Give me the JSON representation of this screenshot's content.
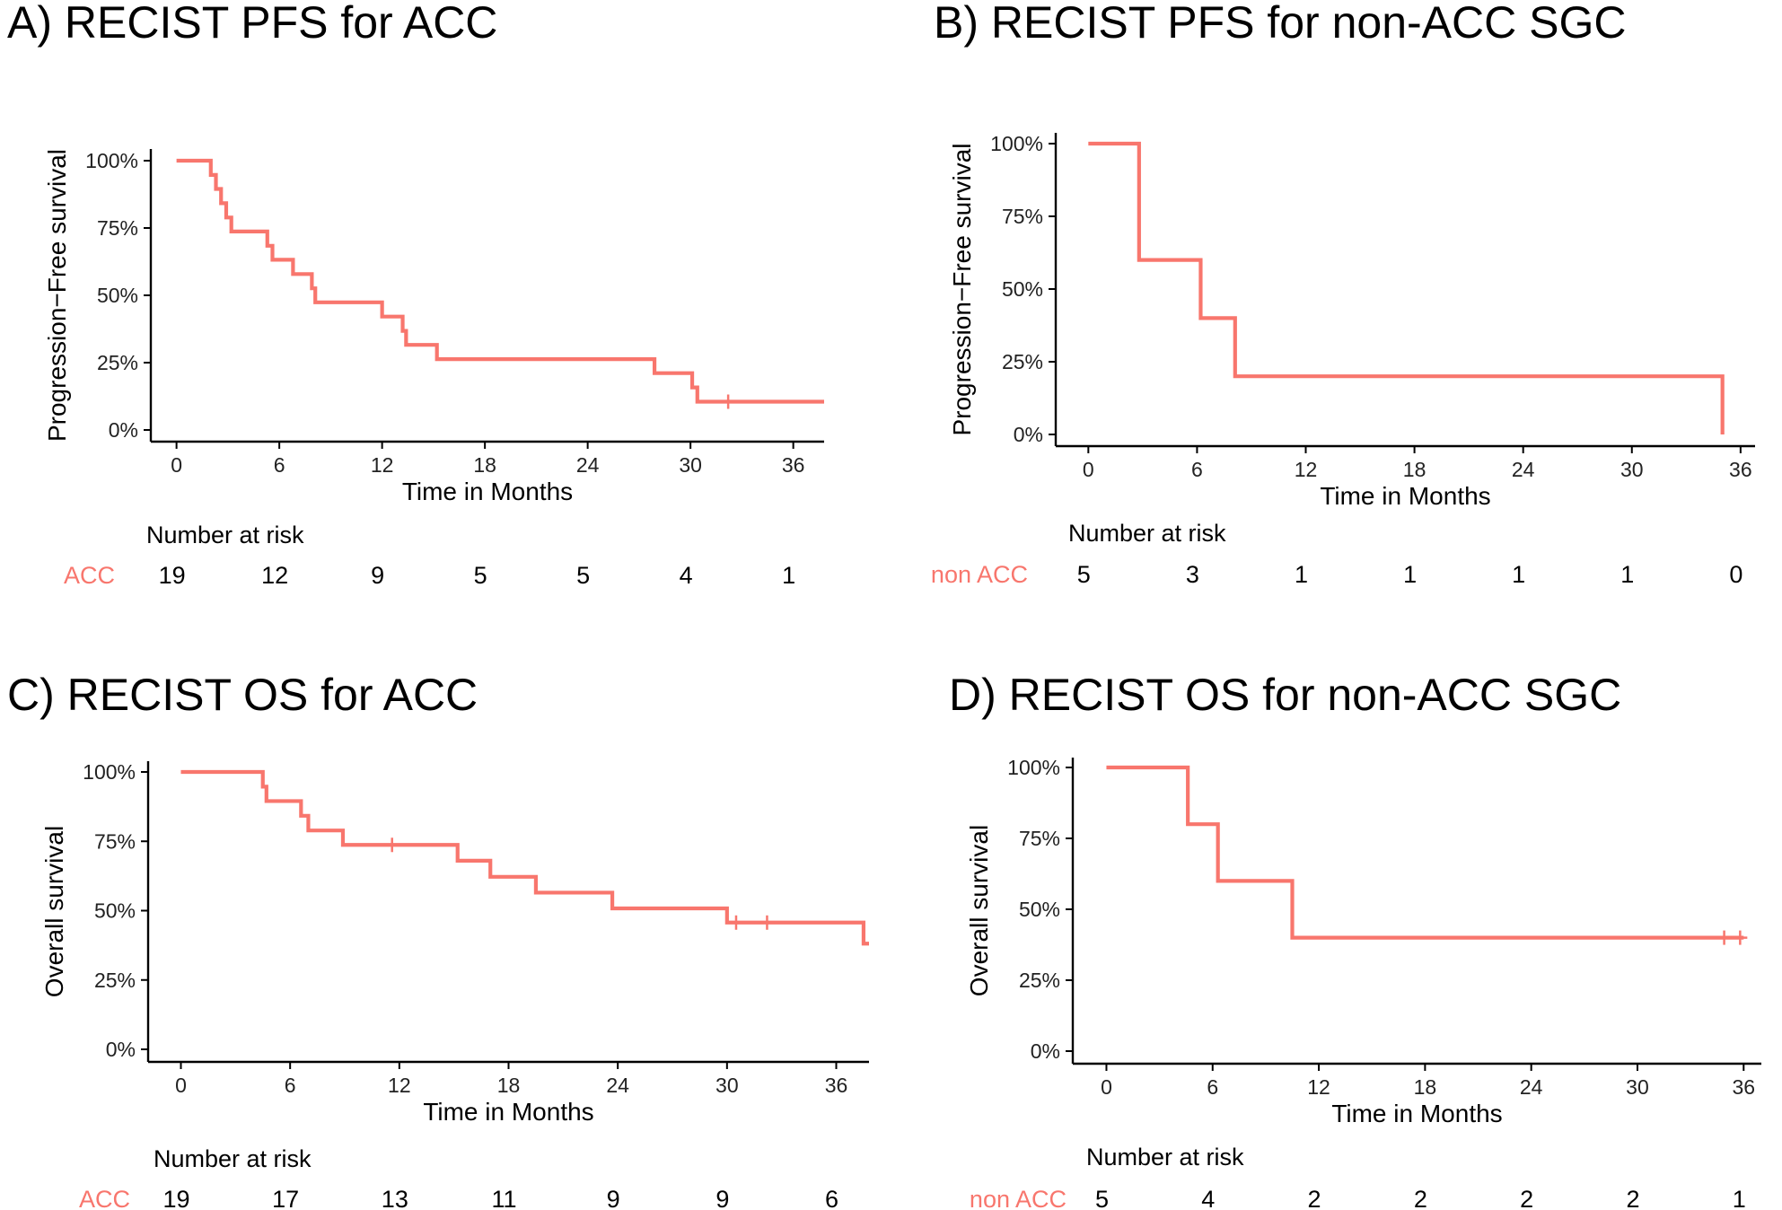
{
  "chart_data": [
    {
      "id": "A",
      "type": "line",
      "title": "A) RECIST PFS for ACC",
      "xlabel": "Time in Months",
      "ylabel": "Progression−Free survival",
      "xlim": [
        -1.5,
        37.8
      ],
      "ylim": [
        0,
        1
      ],
      "x_ticks": [
        0,
        6,
        12,
        18,
        24,
        30,
        36
      ],
      "x_tick_labels": [
        "0",
        "6",
        "12",
        "18",
        "24",
        "30",
        "36"
      ],
      "y_ticks": [
        0,
        0.25,
        0.5,
        0.75,
        1
      ],
      "y_tick_labels": [
        "0%",
        "25%",
        "50%",
        "75%",
        "100%"
      ],
      "curve_color": "#F8766D",
      "series": [
        {
          "x": [
            0,
            2.0,
            2.3,
            2.6,
            2.9,
            3.2,
            5.3,
            5.6,
            6.8,
            7.9,
            8.1,
            12.0,
            13.2,
            13.4,
            15.2,
            27.9,
            30.1,
            30.4,
            37.8
          ],
          "y": [
            1.0,
            0.947,
            0.895,
            0.842,
            0.789,
            0.737,
            0.684,
            0.632,
            0.579,
            0.526,
            0.474,
            0.421,
            0.368,
            0.316,
            0.263,
            0.211,
            0.158,
            0.105,
            0.105
          ]
        }
      ],
      "censor_points": [
        {
          "x": 32.2,
          "y": 0.105
        }
      ],
      "risk_table": {
        "title": "Number at risk",
        "label": "ACC",
        "values": [
          "19",
          "12",
          "9",
          "5",
          "5",
          "4",
          "1"
        ]
      }
    },
    {
      "id": "B",
      "type": "line",
      "title": "B) RECIST PFS for non-ACC SGC",
      "xlabel": "Time in Months",
      "ylabel": "Progression−Free survival",
      "xlim": [
        -1.8,
        36.8
      ],
      "ylim": [
        0,
        1
      ],
      "x_ticks": [
        0,
        6,
        12,
        18,
        24,
        30,
        36
      ],
      "x_tick_labels": [
        "0",
        "6",
        "12",
        "18",
        "24",
        "30",
        "36"
      ],
      "y_ticks": [
        0,
        0.25,
        0.5,
        0.75,
        1
      ],
      "y_tick_labels": [
        "0%",
        "25%",
        "50%",
        "75%",
        "100%"
      ],
      "curve_color": "#F8766D",
      "series": [
        {
          "x": [
            0,
            2.8,
            6.2,
            8.1,
            35.0
          ],
          "y": [
            1.0,
            0.6,
            0.4,
            0.2,
            0.0
          ]
        }
      ],
      "censor_points": [],
      "risk_table": {
        "title": "Number at risk",
        "label": "non ACC",
        "values": [
          "5",
          "3",
          "1",
          "1",
          "1",
          "1",
          "0"
        ]
      }
    },
    {
      "id": "C",
      "type": "line",
      "title": "C) RECIST OS for ACC",
      "xlabel": "Time in Months",
      "ylabel": "Overall survival",
      "xlim": [
        -1.8,
        37.8
      ],
      "ylim": [
        0,
        1
      ],
      "x_ticks": [
        0,
        6,
        12,
        18,
        24,
        30,
        36
      ],
      "x_tick_labels": [
        "0",
        "6",
        "12",
        "18",
        "24",
        "30",
        "36"
      ],
      "y_ticks": [
        0,
        0.25,
        0.5,
        0.75,
        1
      ],
      "y_tick_labels": [
        "0%",
        "25%",
        "50%",
        "75%",
        "100%"
      ],
      "curve_color": "#F8766D",
      "series": [
        {
          "x": [
            0,
            4.5,
            4.7,
            6.6,
            7.0,
            8.9,
            15.2,
            17.0,
            19.5,
            23.7,
            30.0,
            37.5,
            37.8
          ],
          "y": [
            1.0,
            0.947,
            0.895,
            0.842,
            0.789,
            0.737,
            0.68,
            0.622,
            0.565,
            0.508,
            0.457,
            0.381,
            0.381
          ]
        }
      ],
      "censor_points": [
        {
          "x": 11.6,
          "y": 0.737
        },
        {
          "x": 30.5,
          "y": 0.457
        },
        {
          "x": 32.2,
          "y": 0.457
        }
      ],
      "risk_table": {
        "title": "Number at risk",
        "label": "ACC",
        "values": [
          "19",
          "17",
          "13",
          "11",
          "9",
          "9",
          "6"
        ]
      }
    },
    {
      "id": "D",
      "type": "line",
      "title": "D) RECIST OS for non-ACC SGC",
      "xlabel": "Time in Months",
      "ylabel": "Overall survival",
      "xlim": [
        -1.9,
        37.0
      ],
      "ylim": [
        0,
        1
      ],
      "x_ticks": [
        0,
        6,
        12,
        18,
        24,
        30,
        36
      ],
      "x_tick_labels": [
        "0",
        "6",
        "12",
        "18",
        "24",
        "30",
        "36"
      ],
      "y_ticks": [
        0,
        0.25,
        0.5,
        0.75,
        1
      ],
      "y_tick_labels": [
        "0%",
        "25%",
        "50%",
        "75%",
        "100%"
      ],
      "curve_color": "#F8766D",
      "series": [
        {
          "x": [
            0,
            4.6,
            6.3,
            10.5,
            36.0
          ],
          "y": [
            1.0,
            0.8,
            0.6,
            0.4,
            0.4
          ]
        }
      ],
      "censor_points": [
        {
          "x": 34.9,
          "y": 0.4
        },
        {
          "x": 35.8,
          "y": 0.4
        }
      ],
      "risk_table": {
        "title": "Number at risk",
        "label": "non ACC",
        "values": [
          "5",
          "4",
          "2",
          "2",
          "2",
          "2",
          "1"
        ]
      }
    }
  ]
}
